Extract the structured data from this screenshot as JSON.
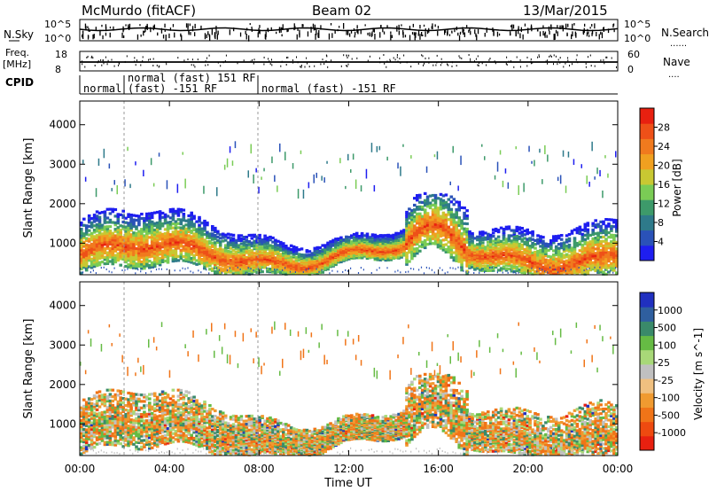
{
  "header": {
    "station": "McMurdo (fitACF)",
    "beam": "Beam 02",
    "date": "13/Mar/2015"
  },
  "status_panels": {
    "left_labels": {
      "nsky": "N.Sky",
      "freq_line1": "Freq.",
      "freq_line2": "[MHz]",
      "cpid": "CPID"
    },
    "right_labels": {
      "nsearch": "N.Search",
      "nsearch_dots": "......",
      "nave": "Nave",
      "nave_dots": "...."
    },
    "nsky_ticks": {
      "top": "10^5",
      "bottom": "10^0"
    },
    "freq_ticks": {
      "top": "18",
      "bottom": "8"
    },
    "nave_ticks": {
      "top": "60",
      "bottom": "0"
    },
    "cpid_labels": [
      "normal",
      "normal (fast) 151 RF",
      "(fast) -151 RF",
      "normal (fast) -151 RF"
    ]
  },
  "chart_data": [
    {
      "type": "heatmap",
      "ylabel": "Slant Range [km]",
      "xlabel": "Time UT",
      "x_ticks": [
        "00:00",
        "04:00",
        "08:00",
        "12:00",
        "16:00",
        "20:00",
        "00:00"
      ],
      "y_ticks": [
        "1000",
        "2000",
        "3000",
        "4000"
      ],
      "ylim": [
        200,
        4600
      ],
      "colorbar": {
        "label": "Power [dB]",
        "ticks": [
          "4",
          "8",
          "12",
          "16",
          "20",
          "24",
          "28"
        ],
        "colors": [
          "#1e1ef0",
          "#2a52b8",
          "#2e7a8a",
          "#3d9a6a",
          "#7acc55",
          "#c8c832",
          "#f0a020",
          "#f07a1e",
          "#ee5018",
          "#e82010"
        ]
      }
    },
    {
      "type": "heatmap",
      "ylabel": "Slant Range [km]",
      "xlabel": "Time UT",
      "x_ticks": [
        "00:00",
        "04:00",
        "08:00",
        "12:00",
        "16:00",
        "20:00",
        "00:00"
      ],
      "y_ticks": [
        "1000",
        "2000",
        "3000",
        "4000"
      ],
      "ylim": [
        200,
        4600
      ],
      "colorbar": {
        "label": "Velocity [m s^-1]",
        "ticks": [
          "1000",
          "500",
          "100",
          "25",
          "-25",
          "-100",
          "-500",
          "-1000"
        ],
        "colors": [
          "#2030c0",
          "#2f5f9f",
          "#3a8a6a",
          "#66bb44",
          "#a8d878",
          "#c0c0c0",
          "#f0c080",
          "#f09a30",
          "#f07418",
          "#ee4a10",
          "#e82010"
        ]
      }
    }
  ]
}
